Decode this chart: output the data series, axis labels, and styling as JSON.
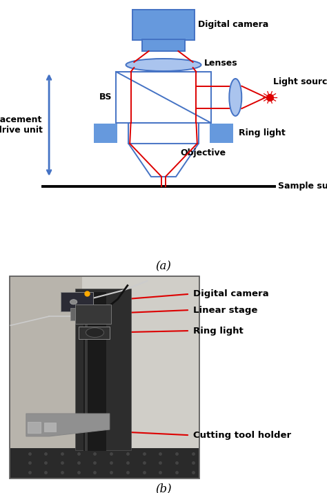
{
  "fig_width": 4.74,
  "fig_height": 7.14,
  "dpi": 100,
  "bg_color": "#ffffff",
  "blue": "#4472C4",
  "blue_fill": "#6699DD",
  "blue_light": "#aac4ee",
  "red": "#DD0000",
  "black": "#000000",
  "label_a": "(a)",
  "label_b": "(b)",
  "cam_label": "Digital camera",
  "lenses_label": "Lenses",
  "bs_label": "BS",
  "ls_label": "Light source",
  "disp_label": "Displacement\ndrive unit",
  "rl_label": "Ring light",
  "obj_label": "Objective",
  "surf_label": "Sample surface",
  "b_cam_label": "Digital camera",
  "b_ls_label": "Linear stage",
  "b_rl_label": "Ring light",
  "b_ct_label": "Cutting tool holder"
}
